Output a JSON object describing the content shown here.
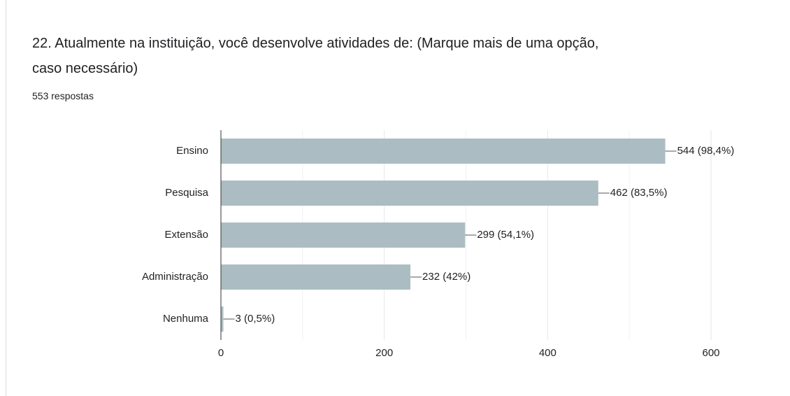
{
  "chart_data": {
    "type": "hbar",
    "title": "22. Atualmente na instituição, você desenvolve atividades de: (Marque mais de uma opção, caso necessário)",
    "subtitle": "553 respostas",
    "categories": [
      "Ensino",
      "Pesquisa",
      "Extensão",
      "Administração",
      "Nenhuma"
    ],
    "values": [
      544,
      462,
      299,
      232,
      3
    ],
    "value_labels": [
      "544 (98,4%)",
      "462 (83,5%)",
      "299 (54,1%)",
      "232 (42%)",
      "3 (0,5%)"
    ],
    "color": "#abbdc2",
    "xlim": [
      0,
      600
    ],
    "xticks": [
      0,
      200,
      400,
      600
    ],
    "xminorticks": [
      100,
      300,
      500
    ],
    "grid": true
  }
}
